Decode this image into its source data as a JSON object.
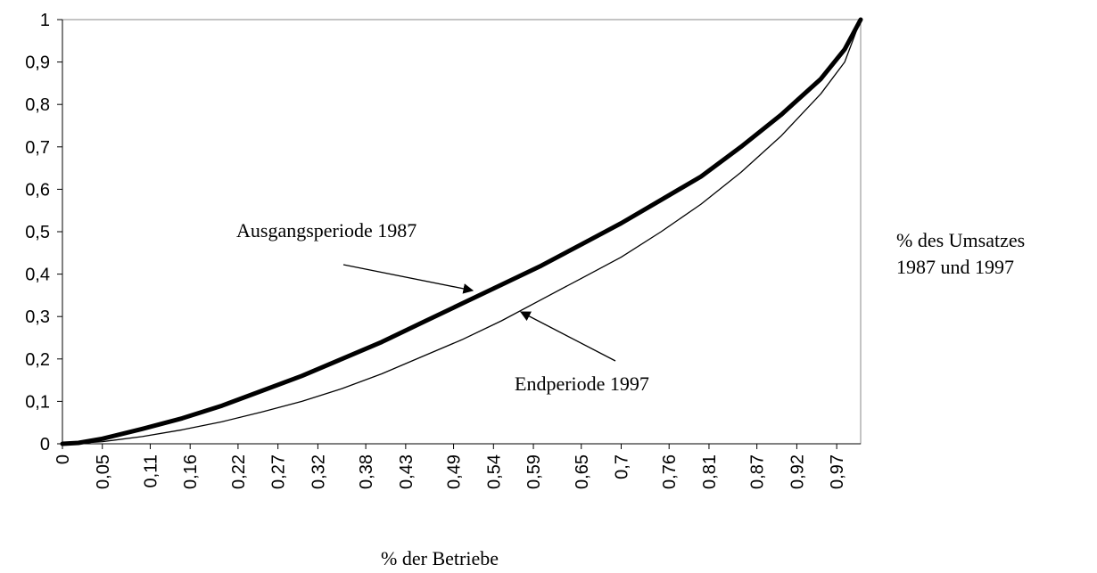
{
  "chart_data": {
    "type": "line",
    "x_label": "% der Betriebe",
    "y_label_lines": [
      "% des Umsatzes",
      "1987 und 1997"
    ],
    "xlim": [
      0,
      1
    ],
    "ylim": [
      0,
      1
    ],
    "xticks": [
      0,
      {
        "value": 0.05,
        "label": "0,05"
      },
      {
        "value": 0.11,
        "label": "0,11"
      },
      {
        "value": 0.16,
        "label": "0,16"
      },
      {
        "value": 0.22,
        "label": "0,22"
      },
      {
        "value": 0.27,
        "label": "0,27"
      },
      {
        "value": 0.32,
        "label": "0,32"
      },
      {
        "value": 0.38,
        "label": "0,38"
      },
      {
        "value": 0.43,
        "label": "0,43"
      },
      {
        "value": 0.49,
        "label": "0,49"
      },
      {
        "value": 0.54,
        "label": "0,54"
      },
      {
        "value": 0.59,
        "label": "0,59"
      },
      {
        "value": 0.65,
        "label": "0,65"
      },
      {
        "value": 0.7,
        "label": "0,7"
      },
      {
        "value": 0.76,
        "label": "0,76"
      },
      {
        "value": 0.81,
        "label": "0,81"
      },
      {
        "value": 0.87,
        "label": "0,87"
      },
      {
        "value": 0.92,
        "label": "0,92"
      },
      {
        "value": 0.97,
        "label": "0,97"
      }
    ],
    "yticks": [
      0,
      {
        "value": 0.1,
        "label": "0,1"
      },
      {
        "value": 0.2,
        "label": "0,2"
      },
      {
        "value": 0.3,
        "label": "0,3"
      },
      {
        "value": 0.4,
        "label": "0,4"
      },
      {
        "value": 0.5,
        "label": "0,5"
      },
      {
        "value": 0.6,
        "label": "0,6"
      },
      {
        "value": 0.7,
        "label": "0,7"
      },
      {
        "value": 0.8,
        "label": "0,8"
      },
      {
        "value": 0.9,
        "label": "0,9"
      },
      1
    ],
    "x": [
      0,
      0.02,
      0.05,
      0.1,
      0.15,
      0.2,
      0.25,
      0.3,
      0.35,
      0.4,
      0.45,
      0.5,
      0.55,
      0.6,
      0.65,
      0.7,
      0.75,
      0.8,
      0.85,
      0.9,
      0.95,
      0.98,
      1
    ],
    "series": [
      {
        "name": "Ausgangsperiode 1987",
        "color": "#000000",
        "values": [
          0,
          0.002,
          0.012,
          0.035,
          0.06,
          0.09,
          0.125,
          0.16,
          0.2,
          0.24,
          0.285,
          0.33,
          0.375,
          0.42,
          0.47,
          0.52,
          0.575,
          0.63,
          0.7,
          0.775,
          0.86,
          0.93,
          1
        ]
      },
      {
        "name": "Endperiode 1997",
        "color": "#000000",
        "values": [
          0,
          0.001,
          0.005,
          0.017,
          0.033,
          0.052,
          0.075,
          0.1,
          0.13,
          0.165,
          0.205,
          0.245,
          0.29,
          0.34,
          0.39,
          0.44,
          0.5,
          0.565,
          0.64,
          0.725,
          0.825,
          0.9,
          1
        ]
      }
    ]
  }
}
